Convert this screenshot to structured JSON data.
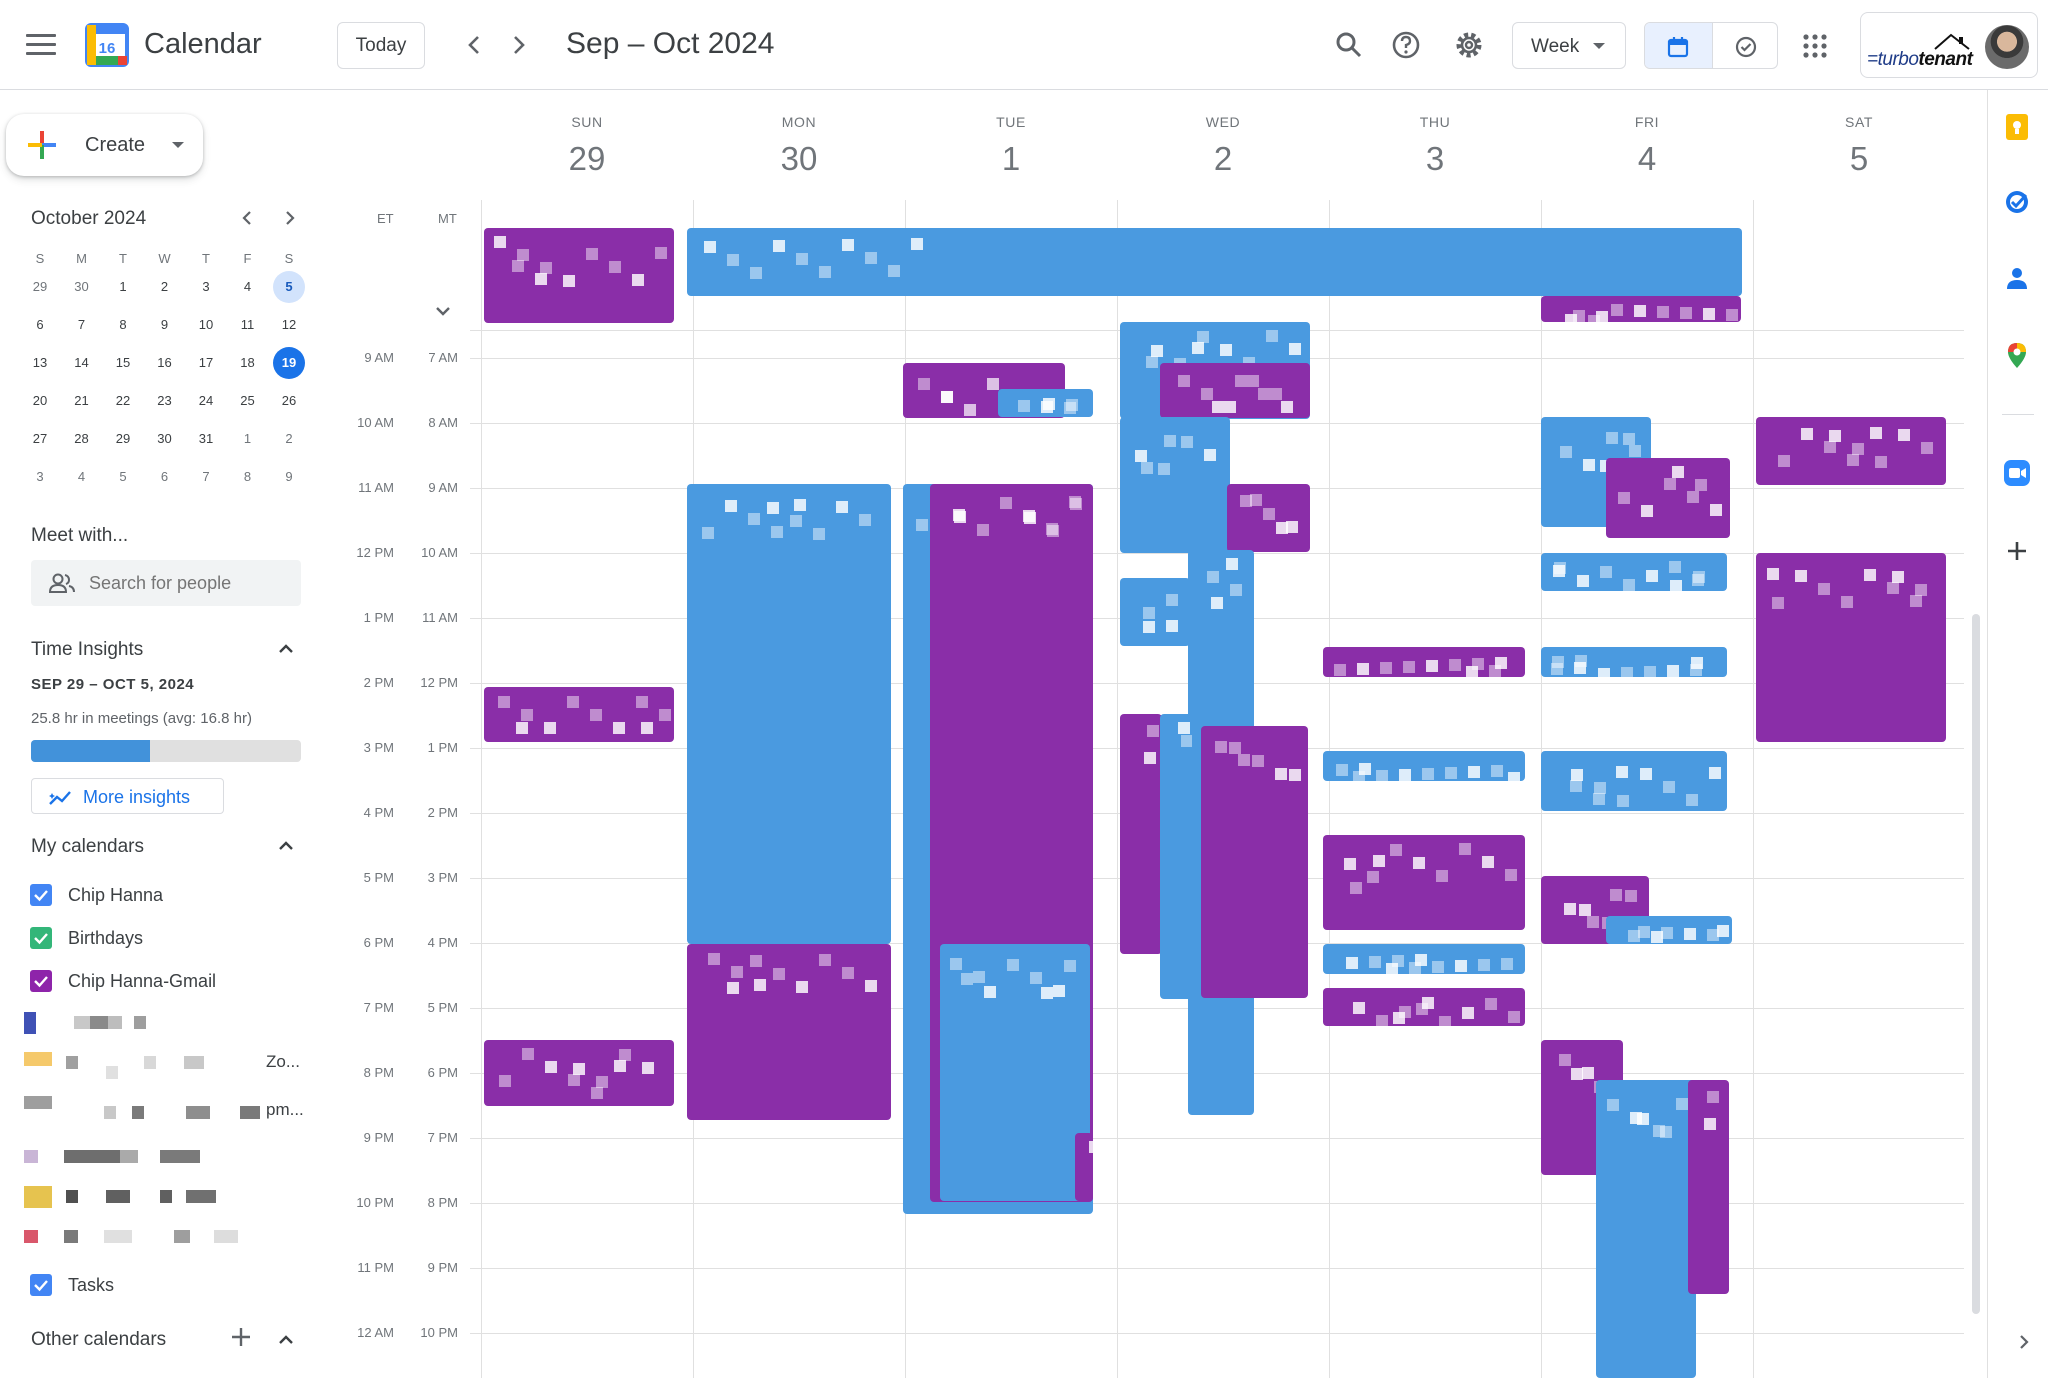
{
  "header": {
    "app_title": "Calendar",
    "logo_day": "16",
    "today_label": "Today",
    "date_range": "Sep – Oct 2024",
    "view_label": "Week",
    "profile_logo_text_prefix": "=turbo",
    "profile_logo_text_suffix": "tenant"
  },
  "sidebar": {
    "create_label": "Create",
    "mini_cal": {
      "title": "October 2024",
      "dow": [
        "S",
        "M",
        "T",
        "W",
        "T",
        "F",
        "S"
      ],
      "weeks": [
        [
          "29",
          "30",
          "1",
          "2",
          "3",
          "4",
          "5"
        ],
        [
          "6",
          "7",
          "8",
          "9",
          "10",
          "11",
          "12"
        ],
        [
          "13",
          "14",
          "15",
          "16",
          "17",
          "18",
          "19"
        ],
        [
          "20",
          "21",
          "22",
          "23",
          "24",
          "25",
          "26"
        ],
        [
          "27",
          "28",
          "29",
          "30",
          "31",
          "1",
          "2"
        ],
        [
          "3",
          "4",
          "5",
          "6",
          "7",
          "8",
          "9"
        ]
      ],
      "selected_day": "5",
      "today": "19"
    },
    "meet_with": "Meet with...",
    "search_people_placeholder": "Search for people",
    "time_insights": {
      "title": "Time Insights",
      "range": "SEP 29 – OCT 5, 2024",
      "meetings": "25.8 hr in meetings (avg: 16.8 hr)",
      "progress": 0.44,
      "more_label": "More insights"
    },
    "my_calendars_title": "My calendars",
    "calendars": [
      {
        "name": "Chip Hanna",
        "color": "#4285f4"
      },
      {
        "name": "Birthdays",
        "color": "#33b679"
      },
      {
        "name": "Chip Hanna-Gmail",
        "color": "#8e24aa"
      }
    ],
    "obscured_tails": [
      "Zo...",
      "pm..."
    ],
    "tasks": {
      "name": "Tasks",
      "color": "#4285f4"
    },
    "other_calendars_title": "Other calendars"
  },
  "grid": {
    "timezones": [
      "ET",
      "MT"
    ],
    "days": [
      {
        "dow": "SUN",
        "date": "29"
      },
      {
        "dow": "MON",
        "date": "30"
      },
      {
        "dow": "TUE",
        "date": "1"
      },
      {
        "dow": "WED",
        "date": "2"
      },
      {
        "dow": "THU",
        "date": "3"
      },
      {
        "dow": "FRI",
        "date": "4"
      },
      {
        "dow": "SAT",
        "date": "5"
      }
    ],
    "hours_et": [
      "9 AM",
      "10 AM",
      "11 AM",
      "12 PM",
      "1 PM",
      "2 PM",
      "3 PM",
      "4 PM",
      "5 PM",
      "6 PM",
      "7 PM",
      "8 PM",
      "9 PM",
      "10 PM",
      "11 PM",
      "12 AM"
    ],
    "hours_mt": [
      "7 AM",
      "8 AM",
      "9 AM",
      "10 AM",
      "11 AM",
      "12 PM",
      "1 PM",
      "2 PM",
      "3 PM",
      "4 PM",
      "5 PM",
      "6 PM",
      "7 PM",
      "8 PM",
      "9 PM",
      "10 PM"
    ]
  },
  "colors": {
    "accent": "#1a73e8",
    "event_blue": "#4a9ae0",
    "event_purple": "#8a2ea8"
  }
}
